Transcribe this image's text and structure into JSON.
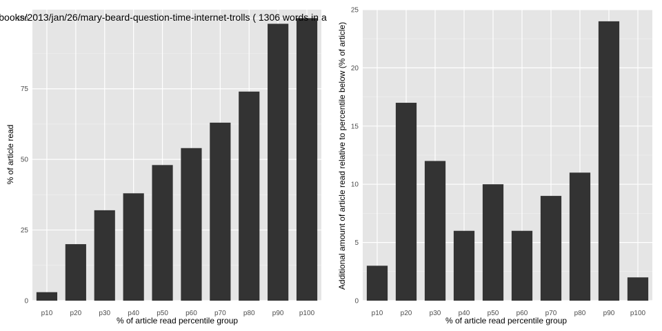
{
  "chart_data": [
    {
      "type": "bar",
      "title": "books/2013/jan/26/mary-beard-question-time-internet-trolls ( 1306 words in a",
      "xlabel": "% of article read percentile group",
      "ylabel": "% of article read",
      "categories": [
        "p10",
        "p20",
        "p30",
        "p40",
        "p50",
        "p60",
        "p70",
        "p80",
        "p90",
        "p100"
      ],
      "values": [
        3,
        20,
        32,
        38,
        48,
        54,
        63,
        74,
        98,
        100
      ],
      "ylim": [
        0,
        103
      ],
      "yticks": [
        0,
        25,
        50,
        75,
        100
      ],
      "grid": true,
      "colors": {
        "bar": "#333333",
        "panel": "#e5e5e5",
        "grid_major": "#ffffff",
        "grid_minor": "#f2f2f2"
      }
    },
    {
      "type": "bar",
      "title": "",
      "xlabel": "% of article read percentile group",
      "ylabel": "Additional amount of article read relative to percentile below (% of article)",
      "categories": [
        "p10",
        "p20",
        "p30",
        "p40",
        "p50",
        "p60",
        "p70",
        "p80",
        "p90",
        "p100"
      ],
      "values": [
        3,
        17,
        12,
        6,
        10,
        6,
        9,
        11,
        24,
        2
      ],
      "ylim": [
        0,
        25
      ],
      "yticks": [
        0,
        5,
        10,
        15,
        20,
        25
      ],
      "grid": true,
      "colors": {
        "bar": "#333333",
        "panel": "#e5e5e5",
        "grid_major": "#ffffff",
        "grid_minor": "#f2f2f2"
      }
    }
  ]
}
